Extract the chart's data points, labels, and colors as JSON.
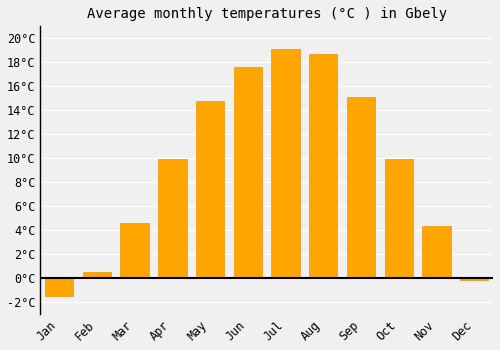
{
  "title": "Average monthly temperatures (°C ) in Gbely",
  "months": [
    "Jan",
    "Feb",
    "Mar",
    "Apr",
    "May",
    "Jun",
    "Jul",
    "Aug",
    "Sep",
    "Oct",
    "Nov",
    "Dec"
  ],
  "values": [
    -1.5,
    0.5,
    4.6,
    9.9,
    14.8,
    17.6,
    19.1,
    18.7,
    15.1,
    9.9,
    4.3,
    -0.2
  ],
  "bar_color": "#FFA500",
  "bar_edge_color": "#E8950A",
  "background_color": "#f0f0f0",
  "grid_color": "#ffffff",
  "ylim": [
    -3,
    21
  ],
  "yticks": [
    -2,
    0,
    2,
    4,
    6,
    8,
    10,
    12,
    14,
    16,
    18,
    20
  ],
  "title_fontsize": 10,
  "tick_fontsize": 8.5
}
